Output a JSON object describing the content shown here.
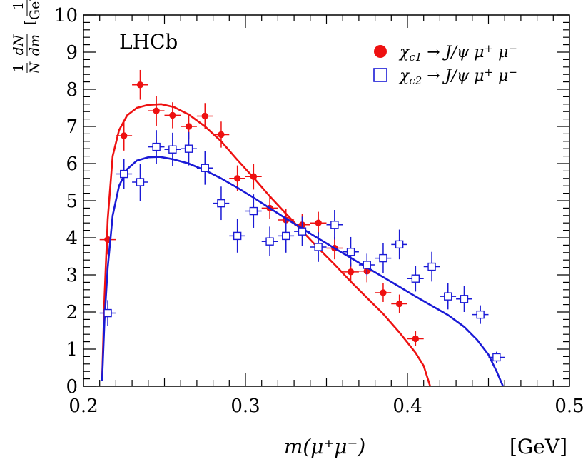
{
  "chart_data": {
    "type": "scatter",
    "title": "",
    "experiment_label": "LHCb",
    "xlabel": "m(μ⁺μ⁻)",
    "xlabel_unit": "[GeV]",
    "ylabel": {
      "prefix_num": "1",
      "prefix_den": "N",
      "deriv_num": "dN",
      "deriv_den": "dm",
      "unit_num": "1",
      "unit_den": "GeV"
    },
    "xlim": [
      0.2,
      0.5
    ],
    "ylim": [
      0,
      10
    ],
    "x_tick_labels": [
      "0.2",
      "0.3",
      "0.4",
      "0.5"
    ],
    "x_tick_values": [
      0.2,
      0.3,
      0.4,
      0.5
    ],
    "y_tick_labels": [
      "0",
      "1",
      "2",
      "3",
      "4",
      "5",
      "6",
      "7",
      "8",
      "9",
      "10"
    ],
    "y_tick_values": [
      0,
      1,
      2,
      3,
      4,
      5,
      6,
      7,
      8,
      9,
      10
    ],
    "bin_half_width": 0.005,
    "series": [
      {
        "name": "chi_c1 -> J/psi mu+ mu-",
        "legend": {
          "base": "χ",
          "sub": "c1",
          "rest": " → J/ψ μ",
          "sup1": "+",
          "mid": "μ",
          "sup2": "−"
        },
        "color": "#ee1111",
        "marker": "filled-circle",
        "x": [
          0.215,
          0.225,
          0.235,
          0.245,
          0.255,
          0.265,
          0.275,
          0.285,
          0.295,
          0.305,
          0.315,
          0.325,
          0.335,
          0.345,
          0.355,
          0.365,
          0.375,
          0.385,
          0.395,
          0.405
        ],
        "y": [
          3.95,
          6.75,
          8.12,
          7.42,
          7.3,
          7.0,
          7.28,
          6.78,
          5.6,
          5.65,
          4.8,
          4.48,
          4.35,
          4.4,
          3.72,
          3.08,
          3.1,
          2.52,
          2.22,
          1.28
        ],
        "err": [
          0.4,
          0.4,
          0.4,
          0.4,
          0.35,
          0.35,
          0.35,
          0.35,
          0.35,
          0.35,
          0.3,
          0.3,
          0.3,
          0.3,
          0.3,
          0.25,
          0.3,
          0.25,
          0.25,
          0.2
        ],
        "fit_x": [
          0.2115,
          0.213,
          0.215,
          0.218,
          0.222,
          0.227,
          0.233,
          0.24,
          0.248,
          0.256,
          0.265,
          0.275,
          0.285,
          0.295,
          0.305,
          0.315,
          0.325,
          0.335,
          0.345,
          0.355,
          0.365,
          0.375,
          0.385,
          0.395,
          0.405,
          0.41,
          0.414
        ],
        "fit_y": [
          0.15,
          2.4,
          4.5,
          6.2,
          6.9,
          7.3,
          7.5,
          7.58,
          7.6,
          7.52,
          7.32,
          7.0,
          6.6,
          6.1,
          5.62,
          5.12,
          4.65,
          4.18,
          3.72,
          3.28,
          2.82,
          2.38,
          1.95,
          1.45,
          0.9,
          0.55,
          0.0
        ]
      },
      {
        "name": "chi_c2 -> J/psi mu+ mu-",
        "legend": {
          "base": "χ",
          "sub": "c2",
          "rest": " → J/ψ μ",
          "sup1": "+",
          "mid": "μ",
          "sup2": "−"
        },
        "color": "#1a1ad6",
        "marker": "open-square",
        "x": [
          0.215,
          0.225,
          0.235,
          0.245,
          0.255,
          0.265,
          0.275,
          0.285,
          0.295,
          0.305,
          0.315,
          0.325,
          0.335,
          0.345,
          0.355,
          0.365,
          0.375,
          0.385,
          0.395,
          0.405,
          0.415,
          0.425,
          0.435,
          0.445,
          0.455
        ],
        "y": [
          1.97,
          5.72,
          5.5,
          6.45,
          6.38,
          6.4,
          5.88,
          4.93,
          4.05,
          4.72,
          3.9,
          4.05,
          4.17,
          3.75,
          4.35,
          3.62,
          3.27,
          3.45,
          3.82,
          2.9,
          3.22,
          2.42,
          2.35,
          1.93,
          0.78
        ],
        "err": [
          0.35,
          0.4,
          0.5,
          0.45,
          0.45,
          0.45,
          0.45,
          0.45,
          0.45,
          0.45,
          0.4,
          0.45,
          0.4,
          0.4,
          0.4,
          0.4,
          0.3,
          0.4,
          0.4,
          0.35,
          0.4,
          0.35,
          0.35,
          0.25,
          0.15
        ],
        "fit_x": [
          0.2115,
          0.213,
          0.215,
          0.218,
          0.222,
          0.227,
          0.233,
          0.24,
          0.247,
          0.255,
          0.265,
          0.275,
          0.285,
          0.295,
          0.305,
          0.315,
          0.325,
          0.335,
          0.345,
          0.355,
          0.365,
          0.375,
          0.385,
          0.395,
          0.405,
          0.415,
          0.425,
          0.435,
          0.443,
          0.45,
          0.455,
          0.459
        ],
        "fit_y": [
          0.15,
          1.8,
          3.2,
          4.6,
          5.4,
          5.85,
          6.08,
          6.17,
          6.18,
          6.12,
          6.0,
          5.82,
          5.6,
          5.35,
          5.08,
          4.8,
          4.52,
          4.25,
          3.98,
          3.72,
          3.46,
          3.2,
          2.94,
          2.68,
          2.42,
          2.17,
          1.92,
          1.6,
          1.25,
          0.85,
          0.4,
          0.0
        ]
      }
    ]
  }
}
